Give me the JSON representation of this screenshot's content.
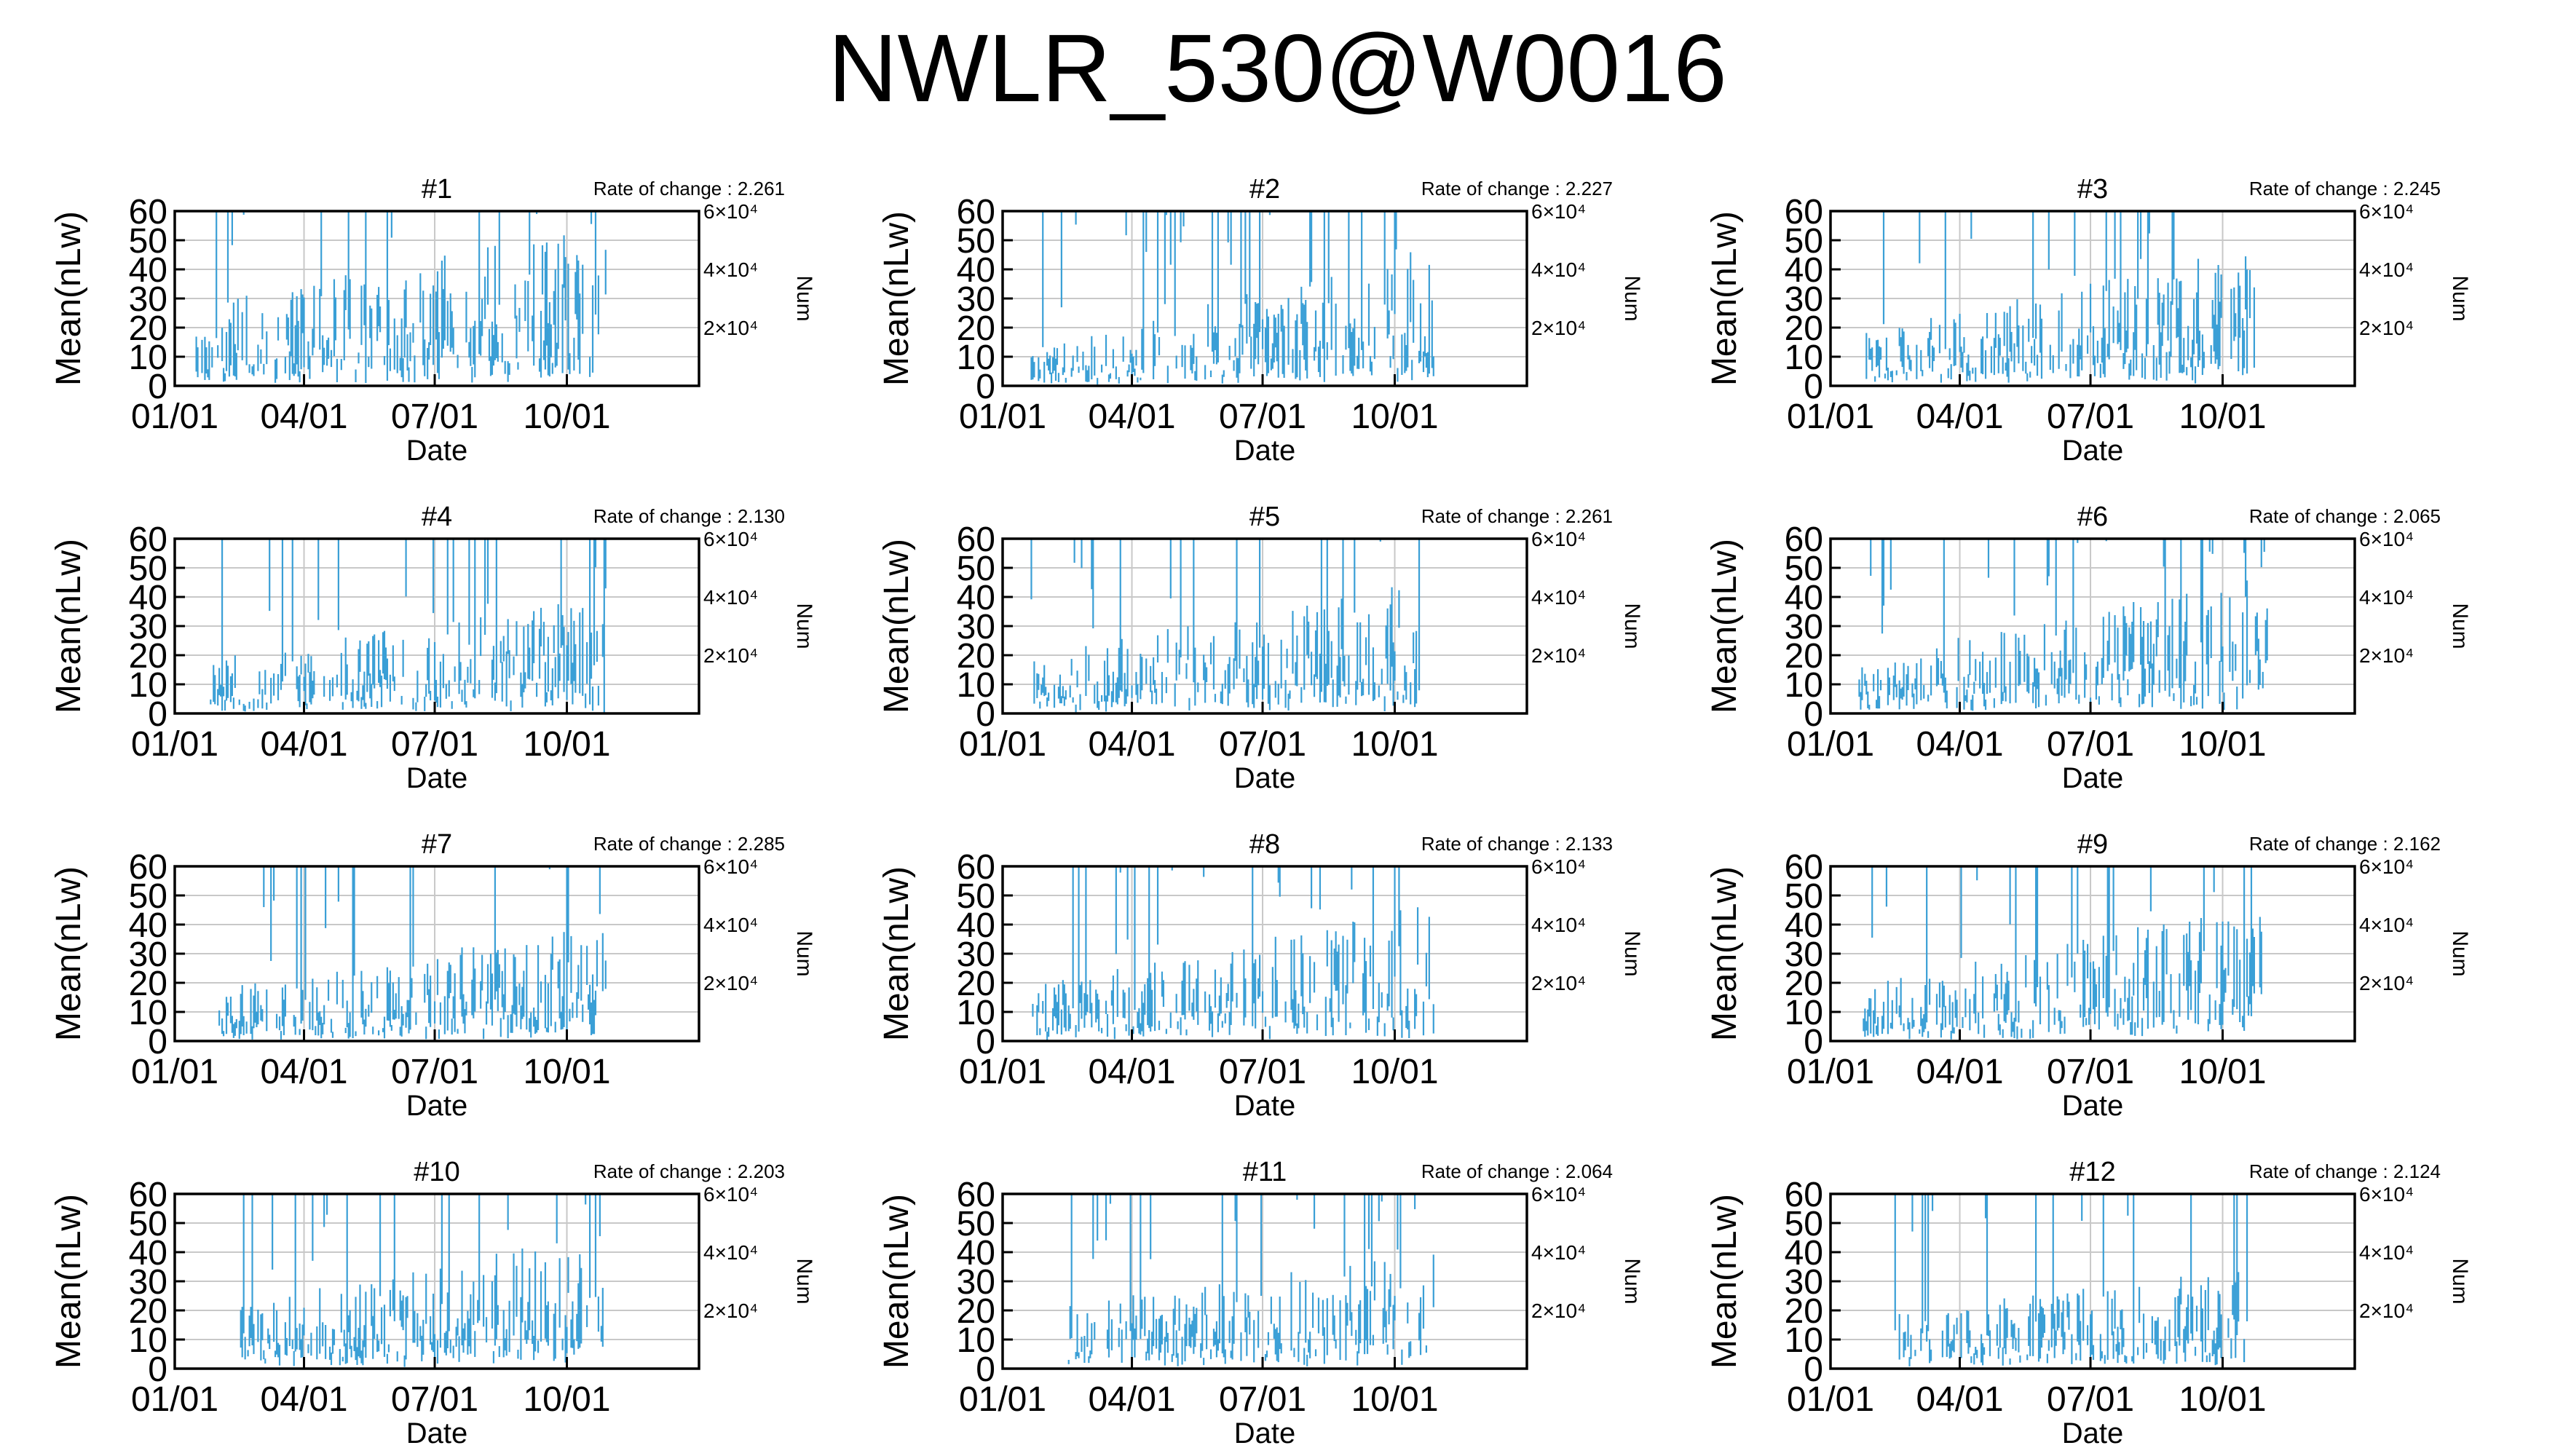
{
  "title": "NWLR_530@W0016",
  "colors": {
    "data": "#3a9fd6",
    "grid": "#c8c8c8",
    "axis": "#000000"
  },
  "axes": {
    "xlabel": "Date",
    "ylabel": "Mean(nLw)",
    "y2label": "Num",
    "yticks": [
      "0",
      "10",
      "20",
      "30",
      "40",
      "50",
      "60"
    ],
    "xticks": [
      "01/01",
      "04/01",
      "07/01",
      "10/01"
    ],
    "y2ticks": [
      "2×10⁴",
      "4×10⁴",
      "6×10⁴"
    ],
    "rate_label": "Rate of change : "
  },
  "chart_data": [
    {
      "type": "bar",
      "title": "#1",
      "rate": "2.261",
      "ylim": [
        0,
        60
      ],
      "y2lim": [
        0,
        60000
      ],
      "xlim": [
        "01/01",
        "12/31"
      ],
      "grid": true,
      "start_day": 15,
      "end_day": 300,
      "base_level": 18,
      "late_level": 35
    },
    {
      "type": "bar",
      "title": "#2",
      "rate": "2.227",
      "ylim": [
        0,
        60
      ],
      "y2lim": [
        0,
        60000
      ],
      "xlim": [
        "01/01",
        "12/31"
      ],
      "grid": true,
      "start_day": 20,
      "end_day": 300,
      "base_level": 8,
      "late_level": 30
    },
    {
      "type": "bar",
      "title": "#3",
      "rate": "2.245",
      "ylim": [
        0,
        60
      ],
      "y2lim": [
        0,
        60000
      ],
      "xlim": [
        "01/01",
        "12/31"
      ],
      "grid": true,
      "start_day": 25,
      "end_day": 295,
      "base_level": 12,
      "late_level": 30
    },
    {
      "type": "bar",
      "title": "#4",
      "rate": "2.130",
      "ylim": [
        0,
        60
      ],
      "y2lim": [
        0,
        60000
      ],
      "xlim": [
        "01/01",
        "12/31"
      ],
      "grid": true,
      "start_day": 25,
      "end_day": 300,
      "base_level": 12,
      "late_level": 25
    },
    {
      "type": "bar",
      "title": "#5",
      "rate": "2.261",
      "ylim": [
        0,
        60
      ],
      "y2lim": [
        0,
        60000
      ],
      "xlim": [
        "01/01",
        "12/31"
      ],
      "grid": true,
      "start_day": 20,
      "end_day": 290,
      "base_level": 12,
      "late_level": 30
    },
    {
      "type": "bar",
      "title": "#6",
      "rate": "2.065",
      "ylim": [
        0,
        60
      ],
      "y2lim": [
        0,
        60000
      ],
      "xlim": [
        "01/01",
        "12/31"
      ],
      "grid": true,
      "start_day": 20,
      "end_day": 305,
      "base_level": 12,
      "late_level": 30
    },
    {
      "type": "bar",
      "title": "#7",
      "rate": "2.285",
      "ylim": [
        0,
        60
      ],
      "y2lim": [
        0,
        60000
      ],
      "xlim": [
        "01/01",
        "12/31"
      ],
      "grid": true,
      "start_day": 30,
      "end_day": 300,
      "base_level": 12,
      "late_level": 25
    },
    {
      "type": "bar",
      "title": "#8",
      "rate": "2.133",
      "ylim": [
        0,
        60
      ],
      "y2lim": [
        0,
        60000
      ],
      "xlim": [
        "01/01",
        "12/31"
      ],
      "grid": true,
      "start_day": 20,
      "end_day": 300,
      "base_level": 12,
      "late_level": 30
    },
    {
      "type": "bar",
      "title": "#9",
      "rate": "2.162",
      "ylim": [
        0,
        60
      ],
      "y2lim": [
        0,
        60000
      ],
      "xlim": [
        "01/01",
        "12/31"
      ],
      "grid": true,
      "start_day": 20,
      "end_day": 300,
      "base_level": 12,
      "late_level": 30
    },
    {
      "type": "bar",
      "title": "#10",
      "rate": "2.203",
      "ylim": [
        0,
        60
      ],
      "y2lim": [
        0,
        60000
      ],
      "xlim": [
        "01/01",
        "12/31"
      ],
      "grid": true,
      "start_day": 45,
      "end_day": 300,
      "base_level": 14,
      "late_level": 30
    },
    {
      "type": "bar",
      "title": "#11",
      "rate": "2.064",
      "ylim": [
        0,
        60
      ],
      "y2lim": [
        0,
        60000
      ],
      "xlim": [
        "01/01",
        "12/31"
      ],
      "grid": true,
      "start_day": 45,
      "end_day": 300,
      "base_level": 14,
      "late_level": 25
    },
    {
      "type": "bar",
      "title": "#12",
      "rate": "2.124",
      "ylim": [
        0,
        60
      ],
      "y2lim": [
        0,
        60000
      ],
      "xlim": [
        "01/01",
        "12/31"
      ],
      "grid": true,
      "start_day": 45,
      "end_day": 290,
      "base_level": 12,
      "late_level": 22
    }
  ]
}
